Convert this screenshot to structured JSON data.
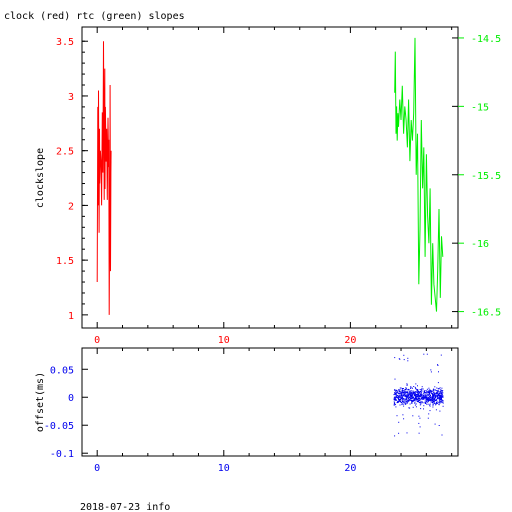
{
  "title": "clock (red) rtc (green) slopes",
  "footer": "2018-07-23 info",
  "colors": {
    "clock": "#ff0000",
    "rtc": "#00ee00",
    "offset": "#0000ee",
    "axis": "#000000"
  },
  "chart_data": [
    {
      "type": "line",
      "title": "clock (red) rtc (green) slopes",
      "ylabel": "clockslope",
      "xlim": [
        -1.2,
        28.5
      ],
      "ylim": [
        0.88,
        3.63
      ],
      "y2lim": [
        -16.62,
        -14.42
      ],
      "x_ticks": [
        0,
        10,
        20
      ],
      "y_ticks": [
        "1",
        "1.5",
        "2",
        "2.5",
        "3",
        "3.5"
      ],
      "y_tick_values": [
        1,
        1.5,
        2,
        2.5,
        3,
        3.5
      ],
      "y2_ticks": [
        "-14.5",
        "-15",
        "-15.5",
        "-16",
        "-16.5"
      ],
      "y2_tick_values": [
        -14.5,
        -15,
        -15.5,
        -16,
        -16.5
      ],
      "series": [
        {
          "name": "clock",
          "axis": "left",
          "x": [
            0.0,
            0.05,
            0.08,
            0.1,
            0.15,
            0.18,
            0.2,
            0.25,
            0.3,
            0.35,
            0.4,
            0.45,
            0.5,
            0.55,
            0.6,
            0.62,
            0.65,
            0.7,
            0.75,
            0.8,
            0.85,
            0.9,
            0.92,
            0.95,
            1.0,
            1.02,
            1.05,
            1.08,
            1.1
          ],
          "y": [
            1.3,
            2.9,
            2.0,
            3.05,
            1.75,
            2.7,
            2.2,
            2.5,
            2.4,
            2.0,
            2.85,
            2.3,
            3.5,
            2.05,
            3.25,
            2.15,
            2.9,
            2.4,
            2.7,
            2.05,
            2.8,
            2.35,
            2.6,
            1.0,
            2.25,
            3.1,
            1.4,
            2.3,
            2.5
          ]
        },
        {
          "name": "rtc",
          "axis": "right",
          "x": [
            23.5,
            23.55,
            23.6,
            23.65,
            23.7,
            23.75,
            23.8,
            23.9,
            24.0,
            24.1,
            24.2,
            24.3,
            24.4,
            24.5,
            24.6,
            24.7,
            24.8,
            24.9,
            25.0,
            25.1,
            25.2,
            25.3,
            25.4,
            25.5,
            25.6,
            25.7,
            25.8,
            25.9,
            26.0,
            26.1,
            26.2,
            26.3,
            26.4,
            26.5,
            26.6,
            26.7,
            26.8,
            26.9,
            27.0,
            27.1,
            27.2,
            27.3
          ],
          "y": [
            -14.9,
            -14.6,
            -15.2,
            -15.0,
            -15.25,
            -15.05,
            -15.15,
            -14.95,
            -15.1,
            -14.85,
            -15.2,
            -15.0,
            -15.1,
            -15.3,
            -14.95,
            -15.4,
            -15.1,
            -15.25,
            -15.05,
            -14.5,
            -15.5,
            -15.2,
            -16.3,
            -15.9,
            -15.1,
            -15.6,
            -15.3,
            -16.1,
            -15.35,
            -15.8,
            -16.0,
            -15.6,
            -16.45,
            -16.0,
            -16.3,
            -16.4,
            -16.5,
            -16.2,
            -15.75,
            -16.4,
            -15.95,
            -16.1
          ]
        }
      ]
    },
    {
      "type": "scatter",
      "ylabel": "offset(ms)",
      "xlim": [
        -1.2,
        28.5
      ],
      "ylim": [
        -0.105,
        0.088
      ],
      "x_ticks": [
        0,
        10,
        20
      ],
      "y_ticks": [
        "0.05",
        "0",
        "-0.05",
        "-0.1"
      ],
      "y_tick_values": [
        0.05,
        0,
        -0.05,
        -0.1
      ],
      "series": [
        {
          "name": "offset",
          "x_range": [
            23.4,
            27.3
          ],
          "center": 0.002,
          "spread": 0.012,
          "outlier_range": [
            -0.07,
            0.08
          ]
        }
      ]
    }
  ]
}
